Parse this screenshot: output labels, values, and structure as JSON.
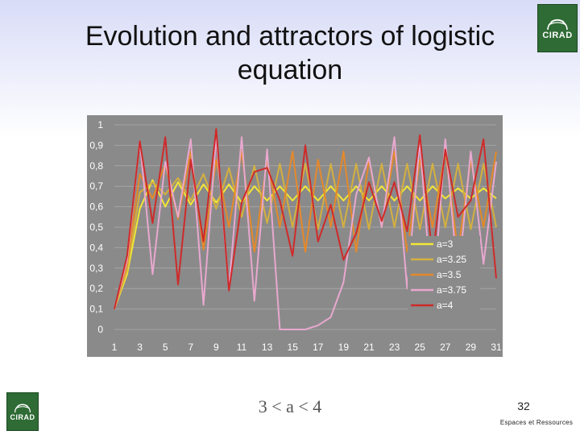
{
  "slide": {
    "title": "Evolution and attractors of logistic equation",
    "logo_text": "CIRAD",
    "formula": "3 < a < 4",
    "page_number": "32",
    "footer": "Espaces et Ressources"
  },
  "chart_data": {
    "type": "line",
    "x": [
      1,
      2,
      3,
      4,
      5,
      6,
      7,
      8,
      9,
      10,
      11,
      12,
      13,
      14,
      15,
      16,
      17,
      18,
      19,
      20,
      21,
      22,
      23,
      24,
      25,
      26,
      27,
      28,
      29,
      30,
      31
    ],
    "xticks": [
      "1",
      "3",
      "5",
      "7",
      "9",
      "11",
      "13",
      "15",
      "17",
      "19",
      "21",
      "23",
      "25",
      "27",
      "29",
      "31"
    ],
    "yticks": [
      "0",
      "0,1",
      "0,2",
      "0,3",
      "0,4",
      "0,5",
      "0,6",
      "0,7",
      "0,8",
      "0,9",
      "1"
    ],
    "ylim": [
      0,
      1
    ],
    "grid": true,
    "legend_position": "bottom-right",
    "series": [
      {
        "name": "a=3",
        "color": "#f3e635",
        "values": [
          0.1,
          0.27,
          0.59,
          0.73,
          0.6,
          0.72,
          0.61,
          0.71,
          0.62,
          0.71,
          0.62,
          0.7,
          0.63,
          0.7,
          0.63,
          0.7,
          0.63,
          0.7,
          0.63,
          0.7,
          0.63,
          0.7,
          0.63,
          0.7,
          0.63,
          0.7,
          0.64,
          0.69,
          0.64,
          0.69,
          0.64
        ]
      },
      {
        "name": "a=3.25",
        "color": "#d4b040",
        "values": [
          0.1,
          0.29,
          0.67,
          0.72,
          0.66,
          0.74,
          0.63,
          0.76,
          0.59,
          0.79,
          0.55,
          0.8,
          0.52,
          0.81,
          0.5,
          0.81,
          0.49,
          0.81,
          0.5,
          0.81,
          0.49,
          0.81,
          0.5,
          0.81,
          0.49,
          0.81,
          0.5,
          0.81,
          0.49,
          0.81,
          0.5
        ]
      },
      {
        "name": "a=3.5",
        "color": "#e5892a",
        "values": [
          0.1,
          0.32,
          0.76,
          0.64,
          0.81,
          0.54,
          0.87,
          0.39,
          0.83,
          0.5,
          0.87,
          0.38,
          0.83,
          0.5,
          0.87,
          0.38,
          0.83,
          0.5,
          0.87,
          0.38,
          0.83,
          0.5,
          0.87,
          0.38,
          0.83,
          0.5,
          0.87,
          0.38,
          0.83,
          0.5,
          0.87
        ]
      },
      {
        "name": "a=3.75",
        "color": "#e8a8cf",
        "values": [
          0.1,
          0.34,
          0.92,
          0.27,
          0.82,
          0.55,
          0.93,
          0.12,
          0.94,
          0.2,
          0.94,
          0.14,
          0.88,
          0.0,
          0.0,
          0.0,
          0.02,
          0.06,
          0.23,
          0.66,
          0.84,
          0.5,
          0.94,
          0.2,
          0.92,
          0.1,
          0.93,
          0.24,
          0.87,
          0.32,
          0.82
        ]
      },
      {
        "name": "a=4",
        "color": "#cf2a2a",
        "values": [
          0.1,
          0.36,
          0.92,
          0.52,
          0.94,
          0.22,
          0.83,
          0.43,
          0.98,
          0.19,
          0.62,
          0.77,
          0.79,
          0.63,
          0.36,
          0.9,
          0.43,
          0.61,
          0.34,
          0.47,
          0.72,
          0.53,
          0.72,
          0.48,
          0.95,
          0.35,
          0.88,
          0.55,
          0.63,
          0.93,
          0.25
        ]
      }
    ]
  }
}
